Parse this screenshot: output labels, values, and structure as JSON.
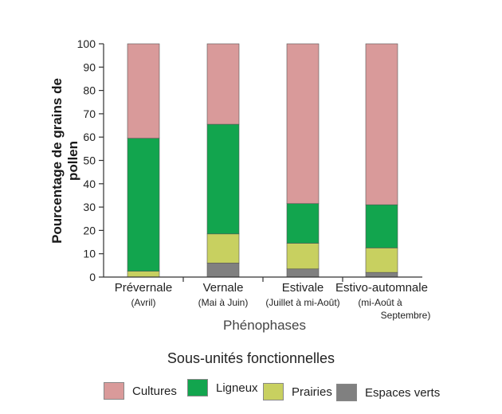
{
  "chart_data": {
    "type": "bar",
    "stacked": true,
    "ylabel": "Pourcentage de grains de pollen",
    "xlabel": "Phénophases",
    "ylim": [
      0,
      100
    ],
    "yticks": [
      0,
      10,
      20,
      30,
      40,
      50,
      60,
      70,
      80,
      90,
      100
    ],
    "grid": false,
    "categories": [
      {
        "name": "Prévernale",
        "sub": [
          "(Avril)"
        ]
      },
      {
        "name": "Vernale",
        "sub": [
          "(Mai à Juin)"
        ]
      },
      {
        "name": "Estivale",
        "sub": [
          "(Juillet à mi-Août)"
        ]
      },
      {
        "name": "Estivo-automnale",
        "sub": [
          "(mi-Août à",
          "Septembre)"
        ]
      }
    ],
    "series": [
      {
        "name": "Espaces verts",
        "color": "#808080",
        "values": [
          0,
          6,
          3.5,
          2
        ]
      },
      {
        "name": "Prairies",
        "color": "#c8d060",
        "values": [
          2.5,
          12.5,
          11,
          10.5
        ]
      },
      {
        "name": "Ligneux",
        "color": "#12a54e",
        "values": [
          57,
          47,
          17,
          18.5
        ]
      },
      {
        "name": "Cultures",
        "color": "#d99a9a",
        "values": [
          40.5,
          34.5,
          68.5,
          69
        ]
      }
    ],
    "legend": {
      "title": "Sous-unités fonctionnelles",
      "placement": "bottom",
      "order": [
        "Cultures",
        "Ligneux",
        "Prairies",
        "Espaces verts"
      ]
    }
  }
}
